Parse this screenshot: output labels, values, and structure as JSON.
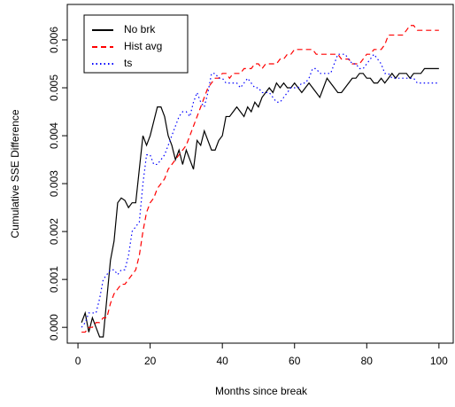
{
  "chart_data": {
    "type": "line",
    "xlabel": "Months since break",
    "ylabel": "Cumulative SSE Difference",
    "xlim": [
      -2.96,
      103.96
    ],
    "ylim": [
      -0.00033,
      0.00674
    ],
    "xticks": [
      0,
      20,
      40,
      60,
      80,
      100
    ],
    "yticks": [
      {
        "value": 0,
        "label": "0.000"
      },
      {
        "value": 0.001,
        "label": "0.001"
      },
      {
        "value": 0.002,
        "label": "0.002"
      },
      {
        "value": 0.003,
        "label": "0.003"
      },
      {
        "value": 0.004,
        "label": "0.004"
      },
      {
        "value": 0.005,
        "label": "0.005"
      },
      {
        "value": 0.006,
        "label": "0.006"
      }
    ],
    "legend": "top-left",
    "x": [
      1,
      2,
      3,
      4,
      5,
      6,
      7,
      8,
      9,
      10,
      11,
      12,
      13,
      14,
      15,
      16,
      17,
      18,
      19,
      20,
      21,
      22,
      23,
      24,
      25,
      26,
      27,
      28,
      29,
      30,
      31,
      32,
      33,
      34,
      35,
      36,
      37,
      38,
      39,
      40,
      41,
      42,
      43,
      44,
      45,
      46,
      47,
      48,
      49,
      50,
      51,
      52,
      53,
      54,
      55,
      56,
      57,
      58,
      59,
      60,
      61,
      62,
      63,
      64,
      65,
      66,
      67,
      68,
      69,
      70,
      71,
      72,
      73,
      74,
      75,
      76,
      77,
      78,
      79,
      80,
      81,
      82,
      83,
      84,
      85,
      86,
      87,
      88,
      89,
      90,
      91,
      92,
      93,
      94,
      95,
      96,
      97,
      98,
      99,
      100
    ],
    "series": [
      {
        "name": "No brk",
        "color": "#000000",
        "dash": "solid",
        "values": [
          0.0001,
          0.0003,
          -0.0001,
          0.0002,
          0.0,
          -0.0002,
          -0.0002,
          0.0006,
          0.0014,
          0.0018,
          0.0026,
          0.0027,
          0.00265,
          0.0025,
          0.0026,
          0.0026,
          0.0033,
          0.004,
          0.0038,
          0.004,
          0.0043,
          0.0046,
          0.0046,
          0.0044,
          0.004,
          0.0038,
          0.0035,
          0.0037,
          0.0034,
          0.0037,
          0.0035,
          0.0033,
          0.0039,
          0.0038,
          0.0041,
          0.0039,
          0.0037,
          0.0037,
          0.0039,
          0.004,
          0.0044,
          0.0044,
          0.0045,
          0.0046,
          0.0045,
          0.0044,
          0.0046,
          0.0045,
          0.0047,
          0.0046,
          0.0048,
          0.0049,
          0.005,
          0.0049,
          0.0051,
          0.005,
          0.0051,
          0.005,
          0.005,
          0.0051,
          0.005,
          0.0049,
          0.005,
          0.0051,
          0.005,
          0.0049,
          0.0048,
          0.005,
          0.0052,
          0.0051,
          0.005,
          0.0049,
          0.0049,
          0.005,
          0.0051,
          0.0052,
          0.0052,
          0.0053,
          0.0053,
          0.0052,
          0.0052,
          0.0051,
          0.0051,
          0.0052,
          0.0051,
          0.0052,
          0.0053,
          0.0052,
          0.0053,
          0.0053,
          0.0053,
          0.0052,
          0.0053,
          0.0053,
          0.0053,
          0.0054,
          0.0054,
          0.0054,
          0.0054,
          0.0054
        ]
      },
      {
        "name": "Hist avg",
        "color": "#ff0000",
        "dash": "dashed",
        "values": [
          -0.0001,
          -0.0001,
          0.0,
          0.0,
          0.0001,
          0.0001,
          0.0002,
          0.0002,
          0.0005,
          0.0007,
          0.0008,
          0.0009,
          0.0009,
          0.001,
          0.0011,
          0.0012,
          0.0015,
          0.002,
          0.0024,
          0.0026,
          0.0027,
          0.0029,
          0.003,
          0.0031,
          0.0033,
          0.0034,
          0.0035,
          0.0036,
          0.0037,
          0.0038,
          0.004,
          0.0042,
          0.0044,
          0.0046,
          0.0048,
          0.005,
          0.0051,
          0.0052,
          0.0052,
          0.0053,
          0.0053,
          0.0052,
          0.0053,
          0.0053,
          0.0053,
          0.0054,
          0.0054,
          0.0054,
          0.0055,
          0.0055,
          0.0054,
          0.0055,
          0.0055,
          0.0055,
          0.0055,
          0.0056,
          0.0056,
          0.0057,
          0.0057,
          0.0058,
          0.0058,
          0.0058,
          0.0058,
          0.0058,
          0.0058,
          0.0057,
          0.0057,
          0.0057,
          0.0057,
          0.0057,
          0.0057,
          0.0057,
          0.0056,
          0.0056,
          0.0056,
          0.0055,
          0.0055,
          0.0055,
          0.0056,
          0.0057,
          0.0057,
          0.0058,
          0.0058,
          0.0058,
          0.0059,
          0.0061,
          0.0061,
          0.0061,
          0.0061,
          0.0061,
          0.0062,
          0.0063,
          0.0063,
          0.0062,
          0.0062,
          0.0062,
          0.0062,
          0.0062,
          0.0062,
          0.0062
        ]
      },
      {
        "name": "ts",
        "color": "#0000ff",
        "dash": "dotted",
        "values": [
          0.0,
          0.0001,
          0.0003,
          0.0003,
          0.0003,
          0.0006,
          0.001,
          0.0011,
          0.0012,
          0.0012,
          0.0011,
          0.0012,
          0.0012,
          0.0015,
          0.002,
          0.0021,
          0.0022,
          0.003,
          0.0036,
          0.0036,
          0.0034,
          0.0034,
          0.0035,
          0.0036,
          0.0038,
          0.004,
          0.0042,
          0.0044,
          0.0045,
          0.0045,
          0.0044,
          0.0047,
          0.0049,
          0.0047,
          0.0046,
          0.0049,
          0.0053,
          0.0053,
          0.0052,
          0.0052,
          0.0051,
          0.0051,
          0.0051,
          0.0051,
          0.005,
          0.0051,
          0.0052,
          0.0051,
          0.005,
          0.005,
          0.0049,
          0.0049,
          0.0049,
          0.0048,
          0.0047,
          0.0047,
          0.0048,
          0.0049,
          0.005,
          0.005,
          0.005,
          0.0051,
          0.0051,
          0.0052,
          0.0054,
          0.0054,
          0.0053,
          0.0053,
          0.0053,
          0.0053,
          0.0055,
          0.0057,
          0.0057,
          0.0057,
          0.0056,
          0.0055,
          0.0055,
          0.0054,
          0.0054,
          0.0055,
          0.0056,
          0.0057,
          0.0056,
          0.0055,
          0.0053,
          0.0053,
          0.0052,
          0.0052,
          0.0052,
          0.0052,
          0.0052,
          0.0052,
          0.0052,
          0.0051,
          0.0051,
          0.0051,
          0.0051,
          0.0051,
          0.0051,
          0.0051
        ]
      }
    ]
  }
}
